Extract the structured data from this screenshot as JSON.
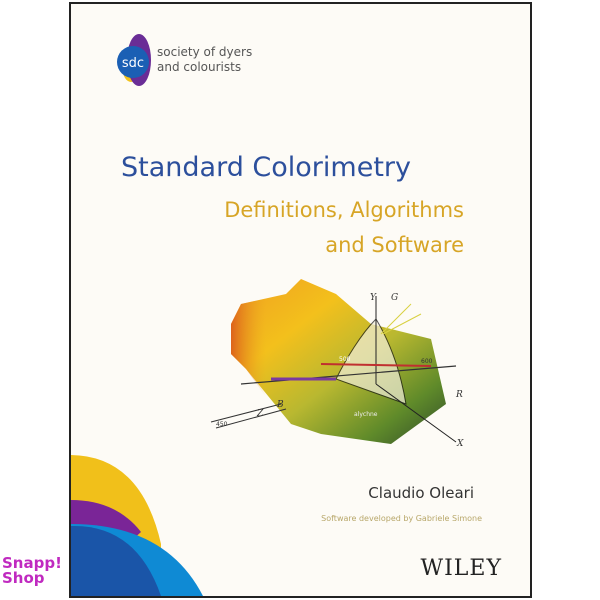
{
  "logo": {
    "mark": "sdc",
    "line1": "society of dyers",
    "line2": "and colourists"
  },
  "title": "Standard Colorimetry",
  "subtitle_line1": "Definitions, Algorithms",
  "subtitle_line2": "and Software",
  "illustration_labels": {
    "y": "Y",
    "g": "G",
    "r": "R",
    "x": "X",
    "z": "Z",
    "b": "B",
    "n600": "600",
    "n450": "450",
    "n500": "500",
    "alychne": "alychne"
  },
  "author": "Claudio Oleari",
  "software_credit": "Software developed by Gabriele Simone",
  "publisher": "WILEY",
  "watermark": {
    "line1": "Snapp!",
    "line2": "Shop"
  },
  "colors": {
    "title": "#2c4f9c",
    "subtitle": "#d7a526",
    "watermark": "#c02ac0"
  }
}
